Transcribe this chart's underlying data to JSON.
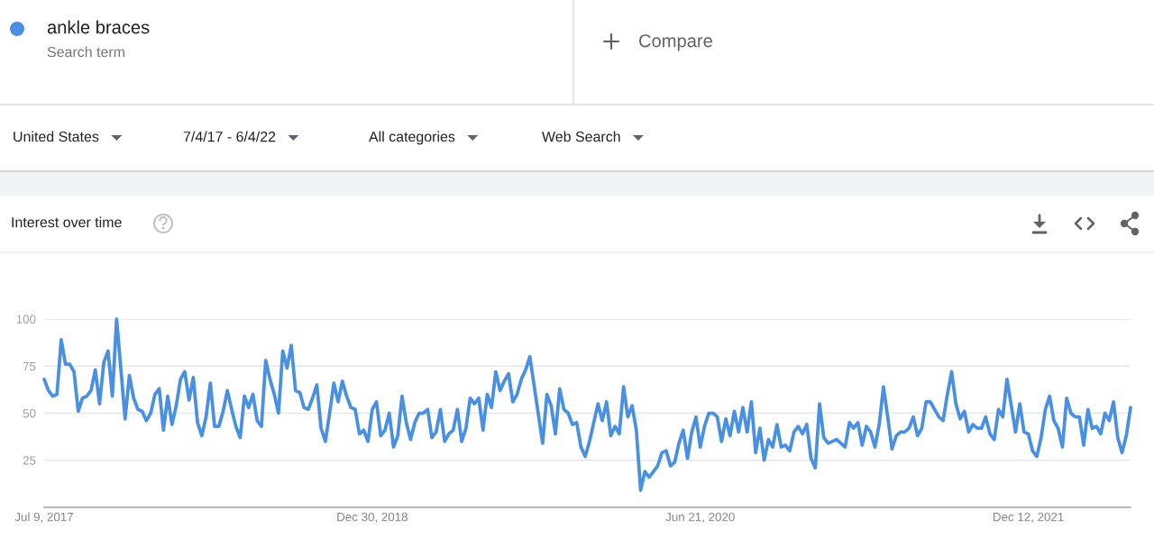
{
  "chart_data": {
    "type": "line",
    "title": "Interest over time",
    "annotations": [
      "Search term",
      "Compare",
      "United States",
      "7/4/17 - 6/4/22",
      "All categories",
      "Web Search"
    ],
    "legend": "top left",
    "grid": "y",
    "xlim": [
      "2017-07-09",
      "2022-05-29"
    ],
    "xticks": [
      {
        "value": "2017-07-09",
        "label": "Jul 9, 2017"
      },
      {
        "value": "2018-12-30",
        "label": "Dec 30, 2018"
      },
      {
        "value": "2020-06-21",
        "label": "Jun 21, 2020"
      },
      {
        "value": "2021-12-12",
        "label": "Dec 12, 2021"
      }
    ],
    "ylim": [
      0,
      100
    ],
    "yticks": [
      25,
      50,
      75,
      100
    ],
    "x": [
      "2017-07-09",
      "2017-07-16",
      "2017-07-23",
      "2017-07-30",
      "2017-08-06",
      "2017-08-13",
      "2017-08-20",
      "2017-08-27",
      "2017-09-03",
      "2017-09-10",
      "2017-09-17",
      "2017-09-24",
      "2017-10-01",
      "2017-10-08",
      "2017-10-15",
      "2017-10-22",
      "2017-10-29",
      "2017-11-05",
      "2017-11-19",
      "2017-11-26",
      "2017-12-03",
      "2017-12-10",
      "2017-12-17",
      "2017-12-24",
      "2017-12-31",
      "2018-01-07",
      "2018-01-14",
      "2018-01-21",
      "2018-01-28",
      "2018-02-04",
      "2018-02-11",
      "2018-02-18",
      "2018-02-25",
      "2018-03-04",
      "2018-03-11",
      "2018-03-18",
      "2018-03-25",
      "2018-04-01",
      "2018-04-08",
      "2018-04-15",
      "2018-04-22",
      "2018-04-29",
      "2018-05-06",
      "2018-05-13",
      "2018-05-20",
      "2018-05-27",
      "2018-06-03",
      "2018-06-10",
      "2018-06-17",
      "2018-06-24",
      "2018-07-01",
      "2018-07-08",
      "2018-07-15",
      "2018-07-22",
      "2018-07-29",
      "2018-08-05",
      "2018-08-12",
      "2018-08-19",
      "2018-08-26",
      "2018-09-02",
      "2018-09-09",
      "2018-09-16",
      "2018-09-23",
      "2018-09-30",
      "2018-10-07",
      "2018-10-14",
      "2018-10-21",
      "2018-10-28",
      "2018-11-04",
      "2018-11-11",
      "2018-11-18",
      "2018-11-25",
      "2018-12-02",
      "2018-12-09",
      "2018-12-16",
      "2018-12-23",
      "2018-12-30",
      "2019-01-06",
      "2019-01-13",
      "2019-01-20",
      "2019-01-27",
      "2019-02-03",
      "2019-02-10",
      "2019-02-17",
      "2019-02-24",
      "2019-03-03",
      "2019-03-10",
      "2019-03-17",
      "2019-03-24",
      "2019-03-31",
      "2019-04-07",
      "2019-04-14",
      "2019-04-21",
      "2019-04-28",
      "2019-05-05",
      "2019-05-12",
      "2019-05-19",
      "2019-05-26",
      "2019-06-02",
      "2019-06-09",
      "2019-06-16",
      "2019-06-23",
      "2019-06-30",
      "2019-07-07",
      "2019-07-14",
      "2019-07-21",
      "2019-07-28",
      "2019-08-04",
      "2019-08-11",
      "2019-08-18",
      "2019-08-25",
      "2019-09-01",
      "2019-09-08",
      "2019-09-15",
      "2019-10-06",
      "2019-10-13",
      "2019-10-20",
      "2019-10-27",
      "2019-11-03",
      "2019-11-10",
      "2019-11-17",
      "2019-11-24",
      "2019-12-01",
      "2019-12-08",
      "2019-12-15",
      "2019-12-22",
      "2019-12-29",
      "2020-01-05",
      "2020-01-12",
      "2020-01-19",
      "2020-01-26",
      "2020-02-02",
      "2020-02-09",
      "2020-02-16",
      "2020-02-23",
      "2020-03-01",
      "2020-03-08",
      "2020-03-15",
      "2020-03-22",
      "2020-03-29",
      "2020-04-05",
      "2020-04-12",
      "2020-04-19",
      "2020-04-26",
      "2020-05-03",
      "2020-05-10",
      "2020-05-17",
      "2020-05-24",
      "2020-05-31",
      "2020-06-07",
      "2020-06-14",
      "2020-06-21",
      "2020-06-28",
      "2020-07-05",
      "2020-07-12",
      "2020-07-19",
      "2020-07-26",
      "2020-08-02",
      "2020-08-09",
      "2020-08-16",
      "2020-08-23",
      "2020-08-30",
      "2020-09-06",
      "2020-09-13",
      "2020-09-20",
      "2020-09-27",
      "2020-10-04",
      "2020-10-11",
      "2020-10-18",
      "2020-10-25",
      "2020-11-01",
      "2020-11-08",
      "2020-11-15",
      "2020-11-22",
      "2020-11-29",
      "2020-12-06",
      "2020-12-13",
      "2020-12-20",
      "2020-12-27",
      "2021-01-03",
      "2021-01-10",
      "2021-01-17",
      "2021-01-24",
      "2021-01-31",
      "2021-02-07",
      "2021-02-14",
      "2021-02-21",
      "2021-02-28",
      "2021-03-07",
      "2021-03-14",
      "2021-03-21",
      "2021-03-28",
      "2021-04-04",
      "2021-04-11",
      "2021-04-18",
      "2021-04-25",
      "2021-05-02",
      "2021-05-09",
      "2021-05-16",
      "2021-05-23",
      "2021-05-30",
      "2021-06-06",
      "2021-06-13",
      "2021-06-20",
      "2021-06-27",
      "2021-07-04",
      "2021-07-11",
      "2021-07-18",
      "2021-07-25",
      "2021-08-01",
      "2021-08-08",
      "2021-08-15",
      "2021-08-22",
      "2021-08-29",
      "2021-09-05",
      "2021-09-12",
      "2021-09-19",
      "2021-09-26",
      "2021-10-03",
      "2021-10-10",
      "2021-10-17",
      "2021-10-24",
      "2021-10-31",
      "2021-11-07",
      "2021-11-14",
      "2021-11-21",
      "2021-11-28",
      "2021-12-05",
      "2021-12-12",
      "2021-12-19",
      "2021-12-26",
      "2022-01-02",
      "2022-01-09",
      "2022-01-16",
      "2022-01-23",
      "2022-01-30",
      "2022-02-06",
      "2022-02-13",
      "2022-02-20",
      "2022-02-27",
      "2022-03-06",
      "2022-03-13",
      "2022-03-20",
      "2022-03-27",
      "2022-04-03",
      "2022-04-10",
      "2022-04-17",
      "2022-04-24",
      "2022-05-01",
      "2022-05-08",
      "2022-05-15",
      "2022-05-22",
      "2022-05-29"
    ],
    "series": [
      {
        "name": "ankle braces",
        "color": "#4a90e2",
        "values": [
          68,
          62,
          59,
          60,
          89,
          76,
          76,
          72,
          51,
          58,
          59,
          62,
          73,
          55,
          77,
          83,
          59,
          100,
          47,
          70,
          58,
          52,
          51,
          46,
          50,
          60,
          63,
          41,
          59,
          44,
          54,
          68,
          72,
          57,
          69,
          45,
          38,
          48,
          66,
          43,
          43,
          51,
          62,
          52,
          43,
          37,
          59,
          53,
          60,
          46,
          43,
          78,
          68,
          60,
          50,
          83,
          74,
          86,
          62,
          61,
          53,
          52,
          58,
          65,
          42,
          35,
          50,
          66,
          56,
          67,
          59,
          53,
          52,
          39,
          41,
          35,
          52,
          56,
          38,
          41,
          50,
          32,
          38,
          59,
          45,
          36,
          45,
          50,
          50,
          52,
          37,
          40,
          52,
          35,
          39,
          41,
          52,
          35,
          42,
          58,
          55,
          58,
          41,
          60,
          53,
          72,
          62,
          67,
          71,
          56,
          60,
          68,
          73,
          80,
          34,
          60,
          54,
          39,
          63,
          52,
          50,
          44,
          45,
          32,
          27,
          35,
          45,
          55,
          46,
          56,
          38,
          43,
          39,
          64,
          48,
          54,
          41,
          9,
          19,
          16,
          19,
          22,
          29,
          30,
          22,
          24,
          34,
          41,
          26,
          40,
          48,
          32,
          43,
          50,
          50,
          48,
          35,
          47,
          38,
          51,
          40,
          53,
          40,
          56,
          29,
          42,
          25,
          36,
          32,
          44,
          32,
          33,
          30,
          40,
          43,
          39,
          44,
          26,
          21,
          55,
          37,
          34,
          35,
          36,
          34,
          32,
          45,
          42,
          45,
          33,
          43,
          40,
          32,
          44,
          64,
          48,
          31,
          38,
          40,
          40,
          42,
          48,
          38,
          42,
          56,
          56,
          52,
          48,
          46,
          60,
          72,
          55,
          47,
          51,
          40,
          44,
          42,
          42,
          48,
          39,
          36,
          52,
          48,
          68,
          54,
          40,
          55,
          40,
          39,
          30,
          27,
          37,
          52,
          59,
          46,
          42,
          32,
          58,
          50,
          48,
          48,
          33,
          52,
          42,
          43,
          39,
          50,
          46,
          56,
          37,
          29,
          38,
          53
        ]
      }
    ]
  }
}
